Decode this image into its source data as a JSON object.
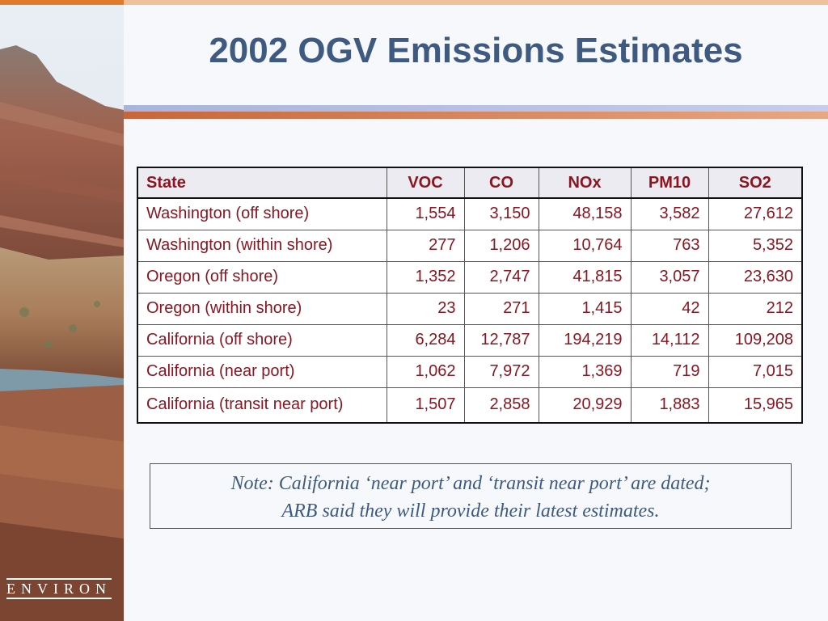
{
  "slide": {
    "title": "2002 OGV Emissions Estimates"
  },
  "table": {
    "headers": [
      "State",
      "VOC",
      "CO",
      "NOx",
      "PM10",
      "SO2"
    ],
    "rows": [
      [
        "Washington (off shore)",
        "1,554",
        "3,150",
        "48,158",
        "3,582",
        "27,612"
      ],
      [
        "Washington (within shore)",
        "277",
        "1,206",
        "10,764",
        "763",
        "5,352"
      ],
      [
        "Oregon (off shore)",
        "1,352",
        "2,747",
        "41,815",
        "3,057",
        "23,630"
      ],
      [
        "Oregon (within shore)",
        "23",
        "271",
        "1,415",
        "42",
        "212"
      ],
      [
        "California (off shore)",
        "6,284",
        "12,787",
        "194,219",
        "14,112",
        "109,208"
      ],
      [
        "California (near port)",
        "1,062",
        "7,972",
        "1,369",
        "719",
        "7,015"
      ],
      [
        "California (transit near port)",
        "1,507",
        "2,858",
        "20,929",
        "1,883",
        "15,965"
      ]
    ]
  },
  "note": {
    "line1": "Note: California ‘near port’ and ‘transit near port’ are dated;",
    "line2": "ARB said they will provide their latest estimates."
  },
  "logo": {
    "text": "ENVIRON"
  },
  "colors": {
    "title": "#3e5a80",
    "table_text": "#8b1520",
    "accent_orange": "#e07b2a",
    "rule_blue": "#a9b4dc",
    "rule_orange": "#c7663a"
  }
}
